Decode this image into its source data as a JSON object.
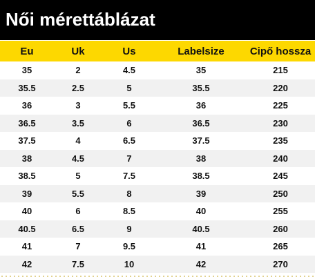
{
  "title": "Női mérettáblázat",
  "colors": {
    "header_background": "#000000",
    "header_text": "#ffffff",
    "table_header_background": "#fdd800",
    "row_stripe": "#f1f1f1"
  },
  "table": {
    "columns": [
      "Eu",
      "Uk",
      "Us",
      "Labelsize",
      "Cipő hossza"
    ],
    "rows": [
      [
        "35",
        "2",
        "4.5",
        "35",
        "215"
      ],
      [
        "35.5",
        "2.5",
        "5",
        "35.5",
        "220"
      ],
      [
        "36",
        "3",
        "5.5",
        "36",
        "225"
      ],
      [
        "36.5",
        "3.5",
        "6",
        "36.5",
        "230"
      ],
      [
        "37.5",
        "4",
        "6.5",
        "37.5",
        "235"
      ],
      [
        "38",
        "4.5",
        "7",
        "38",
        "240"
      ],
      [
        "38.5",
        "5",
        "7.5",
        "38.5",
        "245"
      ],
      [
        "39",
        "5.5",
        "8",
        "39",
        "250"
      ],
      [
        "40",
        "6",
        "8.5",
        "40",
        "255"
      ],
      [
        "40.5",
        "6.5",
        "9",
        "40.5",
        "260"
      ],
      [
        "41",
        "7",
        "9.5",
        "41",
        "265"
      ],
      [
        "42",
        "7.5",
        "10",
        "42",
        "270"
      ]
    ]
  }
}
